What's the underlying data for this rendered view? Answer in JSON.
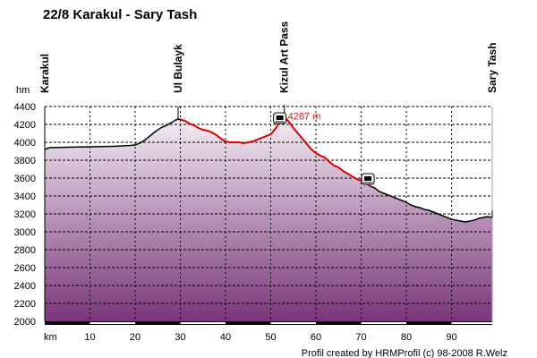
{
  "chart_data": {
    "type": "area",
    "title": "22/8 Karakul - Sary Tash",
    "ylabel": "hm",
    "xlabel": "km",
    "credit": "Profil created by HRMProfil (c) 98-2008 R.Welz",
    "xlim": [
      0,
      99
    ],
    "ylim": [
      2000,
      4400
    ],
    "yticks": [
      "2000",
      "2200",
      "2400",
      "2600",
      "2800",
      "3000",
      "3200",
      "3400",
      "3600",
      "3800",
      "4000",
      "4200",
      "4400"
    ],
    "xticks": [
      "10",
      "20",
      "30",
      "40",
      "50",
      "60",
      "70",
      "80",
      "90"
    ],
    "grid": true,
    "waypoints": [
      {
        "label": "Karakul",
        "km": 0
      },
      {
        "label": "Ul Bulayk",
        "km": 29.5
      },
      {
        "label": "Kizul Art Pass",
        "km": 53
      },
      {
        "label": "Sary Tash",
        "km": 99
      }
    ],
    "peak": {
      "label": "4287 m",
      "km": 53,
      "elevation": 4287
    },
    "icons": [
      {
        "name": "mountain-pass-sign-icon",
        "km": 52
      },
      {
        "name": "border-bus-sign-icon",
        "km": 71.5
      }
    ],
    "colors": {
      "profile_line": "#000000",
      "climb_highlight": "#e00000",
      "peak_label": "#c81e1e",
      "fill_top": "#f4eef4",
      "fill_bottom": "#7a357a",
      "grid": "#000000",
      "axis_band": "#000000"
    },
    "highlight_range_km": [
      30,
      72
    ],
    "series": [
      {
        "x": [
          0,
          1,
          5,
          10,
          15,
          19,
          20,
          21,
          22,
          23,
          24,
          25,
          26,
          27,
          28,
          29,
          29.5,
          30,
          31,
          32,
          33,
          34,
          35,
          36,
          37,
          38,
          39,
          40,
          41,
          42,
          43,
          44,
          45,
          46,
          47,
          48,
          49,
          50,
          51,
          52,
          53,
          54,
          55,
          56,
          57,
          58,
          59,
          60,
          61,
          62,
          63,
          64,
          65,
          66,
          67,
          68,
          69,
          70,
          71,
          72,
          73,
          74,
          75,
          76,
          77,
          78,
          79,
          80,
          81,
          82,
          83,
          84,
          85,
          86,
          87,
          88,
          89,
          90,
          91,
          92,
          93,
          94,
          95,
          96,
          97,
          98,
          99
        ],
        "values": [
          3920,
          3940,
          3945,
          3950,
          3955,
          3965,
          3970,
          3990,
          4020,
          4060,
          4100,
          4140,
          4170,
          4190,
          4220,
          4250,
          4260,
          4255,
          4240,
          4210,
          4190,
          4160,
          4140,
          4130,
          4110,
          4080,
          4040,
          4010,
          4000,
          4000,
          4000,
          3990,
          4000,
          4010,
          4030,
          4050,
          4070,
          4090,
          4150,
          4230,
          4287,
          4230,
          4160,
          4100,
          4040,
          3980,
          3920,
          3880,
          3850,
          3830,
          3780,
          3740,
          3720,
          3680,
          3650,
          3620,
          3590,
          3570,
          3550,
          3510,
          3490,
          3450,
          3430,
          3410,
          3390,
          3370,
          3350,
          3330,
          3300,
          3280,
          3270,
          3250,
          3240,
          3220,
          3200,
          3180,
          3160,
          3140,
          3130,
          3120,
          3110,
          3120,
          3130,
          3150,
          3160,
          3170,
          3160
        ]
      }
    ]
  }
}
